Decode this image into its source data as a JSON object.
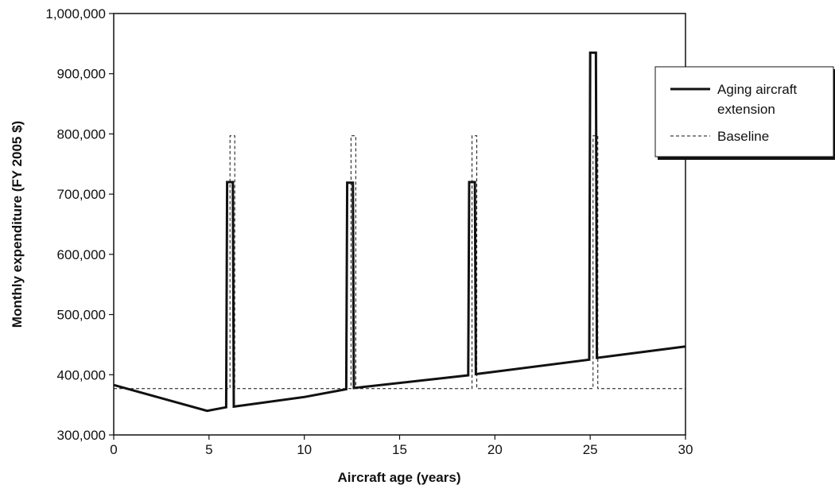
{
  "chart_data": {
    "type": "line",
    "xlabel": "Aircraft age (years)",
    "ylabel": "Monthly expenditure (FY 2005 $)",
    "xlim": [
      0,
      30
    ],
    "ylim": [
      300000,
      1000000
    ],
    "x_ticks": [
      0,
      5,
      10,
      15,
      20,
      25,
      30
    ],
    "x_tick_labels": [
      "0",
      "5",
      "10",
      "15",
      "20",
      "25",
      "30"
    ],
    "y_ticks": [
      300000,
      400000,
      500000,
      600000,
      700000,
      800000,
      900000,
      1000000
    ],
    "y_tick_labels": [
      "300,000",
      "400,000",
      "500,000",
      "600,000",
      "700,000",
      "800,000",
      "900,000",
      "1,000,000"
    ],
    "grid": false,
    "legend_position": "right",
    "series": [
      {
        "name": "Aging aircraft extension",
        "style": "solid-thick",
        "color": "#111111",
        "points": [
          [
            0,
            383000
          ],
          [
            4.9,
            340000
          ],
          [
            5.9,
            346000
          ],
          [
            5.95,
            720000
          ],
          [
            6.25,
            720000
          ],
          [
            6.3,
            347000
          ],
          [
            10,
            363000
          ],
          [
            12.2,
            376000
          ],
          [
            12.25,
            719000
          ],
          [
            12.55,
            719000
          ],
          [
            12.6,
            378000
          ],
          [
            18.6,
            399000
          ],
          [
            18.65,
            720000
          ],
          [
            18.95,
            720000
          ],
          [
            19.0,
            401000
          ],
          [
            24.95,
            425000
          ],
          [
            25.0,
            935000
          ],
          [
            25.3,
            935000
          ],
          [
            25.35,
            428000
          ],
          [
            30,
            447000
          ]
        ]
      },
      {
        "name": "Baseline",
        "style": "dashed-thin",
        "color": "#111111",
        "points": [
          [
            0,
            377000
          ],
          [
            6.1,
            377000
          ],
          [
            6.1,
            797000
          ],
          [
            6.35,
            797000
          ],
          [
            6.35,
            377000
          ],
          [
            12.45,
            377000
          ],
          [
            12.45,
            797000
          ],
          [
            12.7,
            797000
          ],
          [
            12.7,
            377000
          ],
          [
            18.8,
            377000
          ],
          [
            18.8,
            797000
          ],
          [
            19.05,
            797000
          ],
          [
            19.05,
            377000
          ],
          [
            25.15,
            377000
          ],
          [
            25.15,
            797000
          ],
          [
            25.4,
            797000
          ],
          [
            25.4,
            377000
          ],
          [
            30,
            377000
          ]
        ]
      }
    ],
    "legend": {
      "items": [
        {
          "label_line1": "Aging aircraft",
          "label_line2": "extension"
        },
        {
          "label_line1": "Baseline"
        }
      ]
    }
  }
}
